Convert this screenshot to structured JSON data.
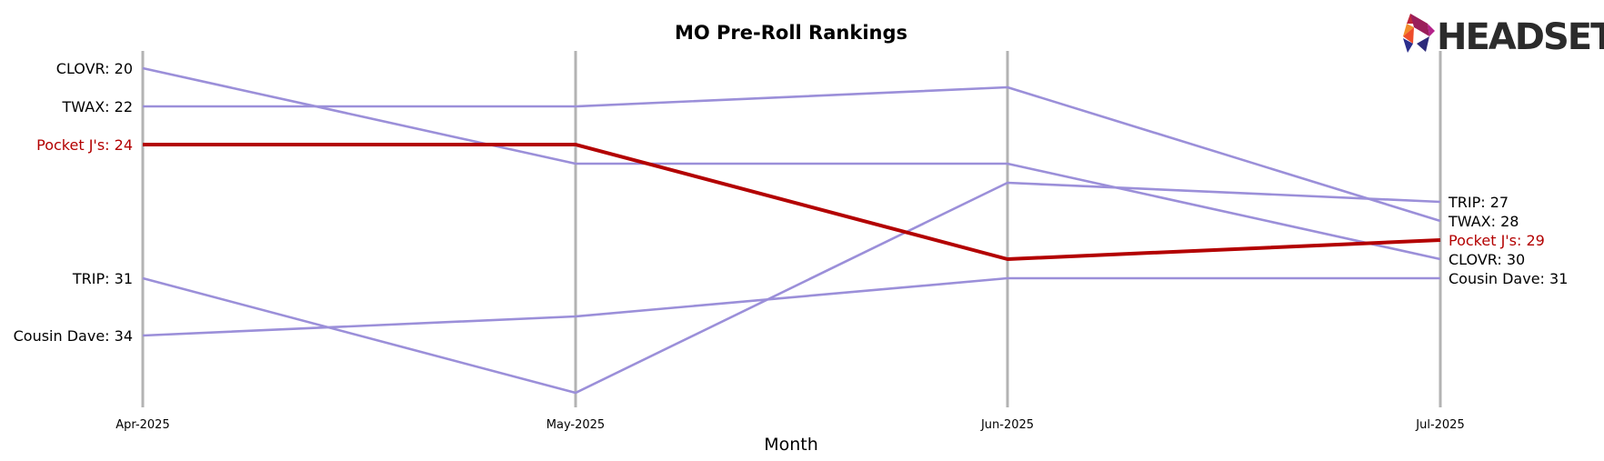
{
  "chart_data": {
    "type": "line",
    "title": "MO Pre-Roll Rankings",
    "xlabel": "Month",
    "ylabel": "",
    "categories": [
      "Apr-2025",
      "May-2025",
      "Jun-2025",
      "Jul-2025"
    ],
    "y_inverted": true,
    "ylim": [
      19,
      38
    ],
    "highlight_color": "#b30000",
    "series_color": "#9b8fd9",
    "series": [
      {
        "name": "CLOVR",
        "values": [
          20,
          25,
          25,
          30
        ],
        "highlight": false
      },
      {
        "name": "TWAX",
        "values": [
          22,
          22,
          21,
          28
        ],
        "highlight": false
      },
      {
        "name": "TRIP",
        "values": [
          31,
          37,
          26,
          27
        ],
        "highlight": false
      },
      {
        "name": "Cousin Dave",
        "values": [
          34,
          33,
          31,
          31
        ],
        "highlight": false
      },
      {
        "name": "Pocket J's",
        "values": [
          24,
          24,
          30,
          29
        ],
        "highlight": true
      }
    ],
    "left_labels": [
      "CLOVR: 20",
      "TWAX: 22",
      "Pocket J's: 24",
      "TRIP: 31",
      "Cousin Dave: 34"
    ],
    "right_labels": [
      "TRIP: 27",
      "TWAX: 28",
      "Pocket J's: 29",
      "CLOVR: 30",
      "Cousin Dave: 31"
    ]
  },
  "logo": {
    "text": "HEADSET"
  }
}
